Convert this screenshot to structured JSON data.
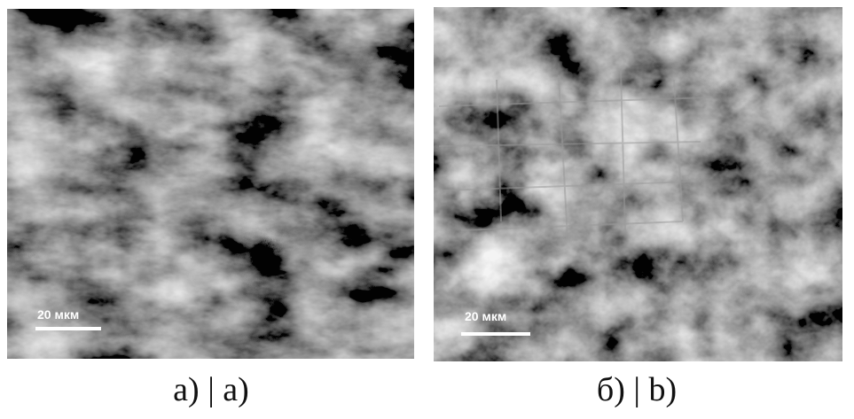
{
  "panels": [
    {
      "scale_bar": "20 мкм",
      "caption": "а) | a)"
    },
    {
      "scale_bar": "20 мкм",
      "caption": "б) | b)"
    }
  ]
}
